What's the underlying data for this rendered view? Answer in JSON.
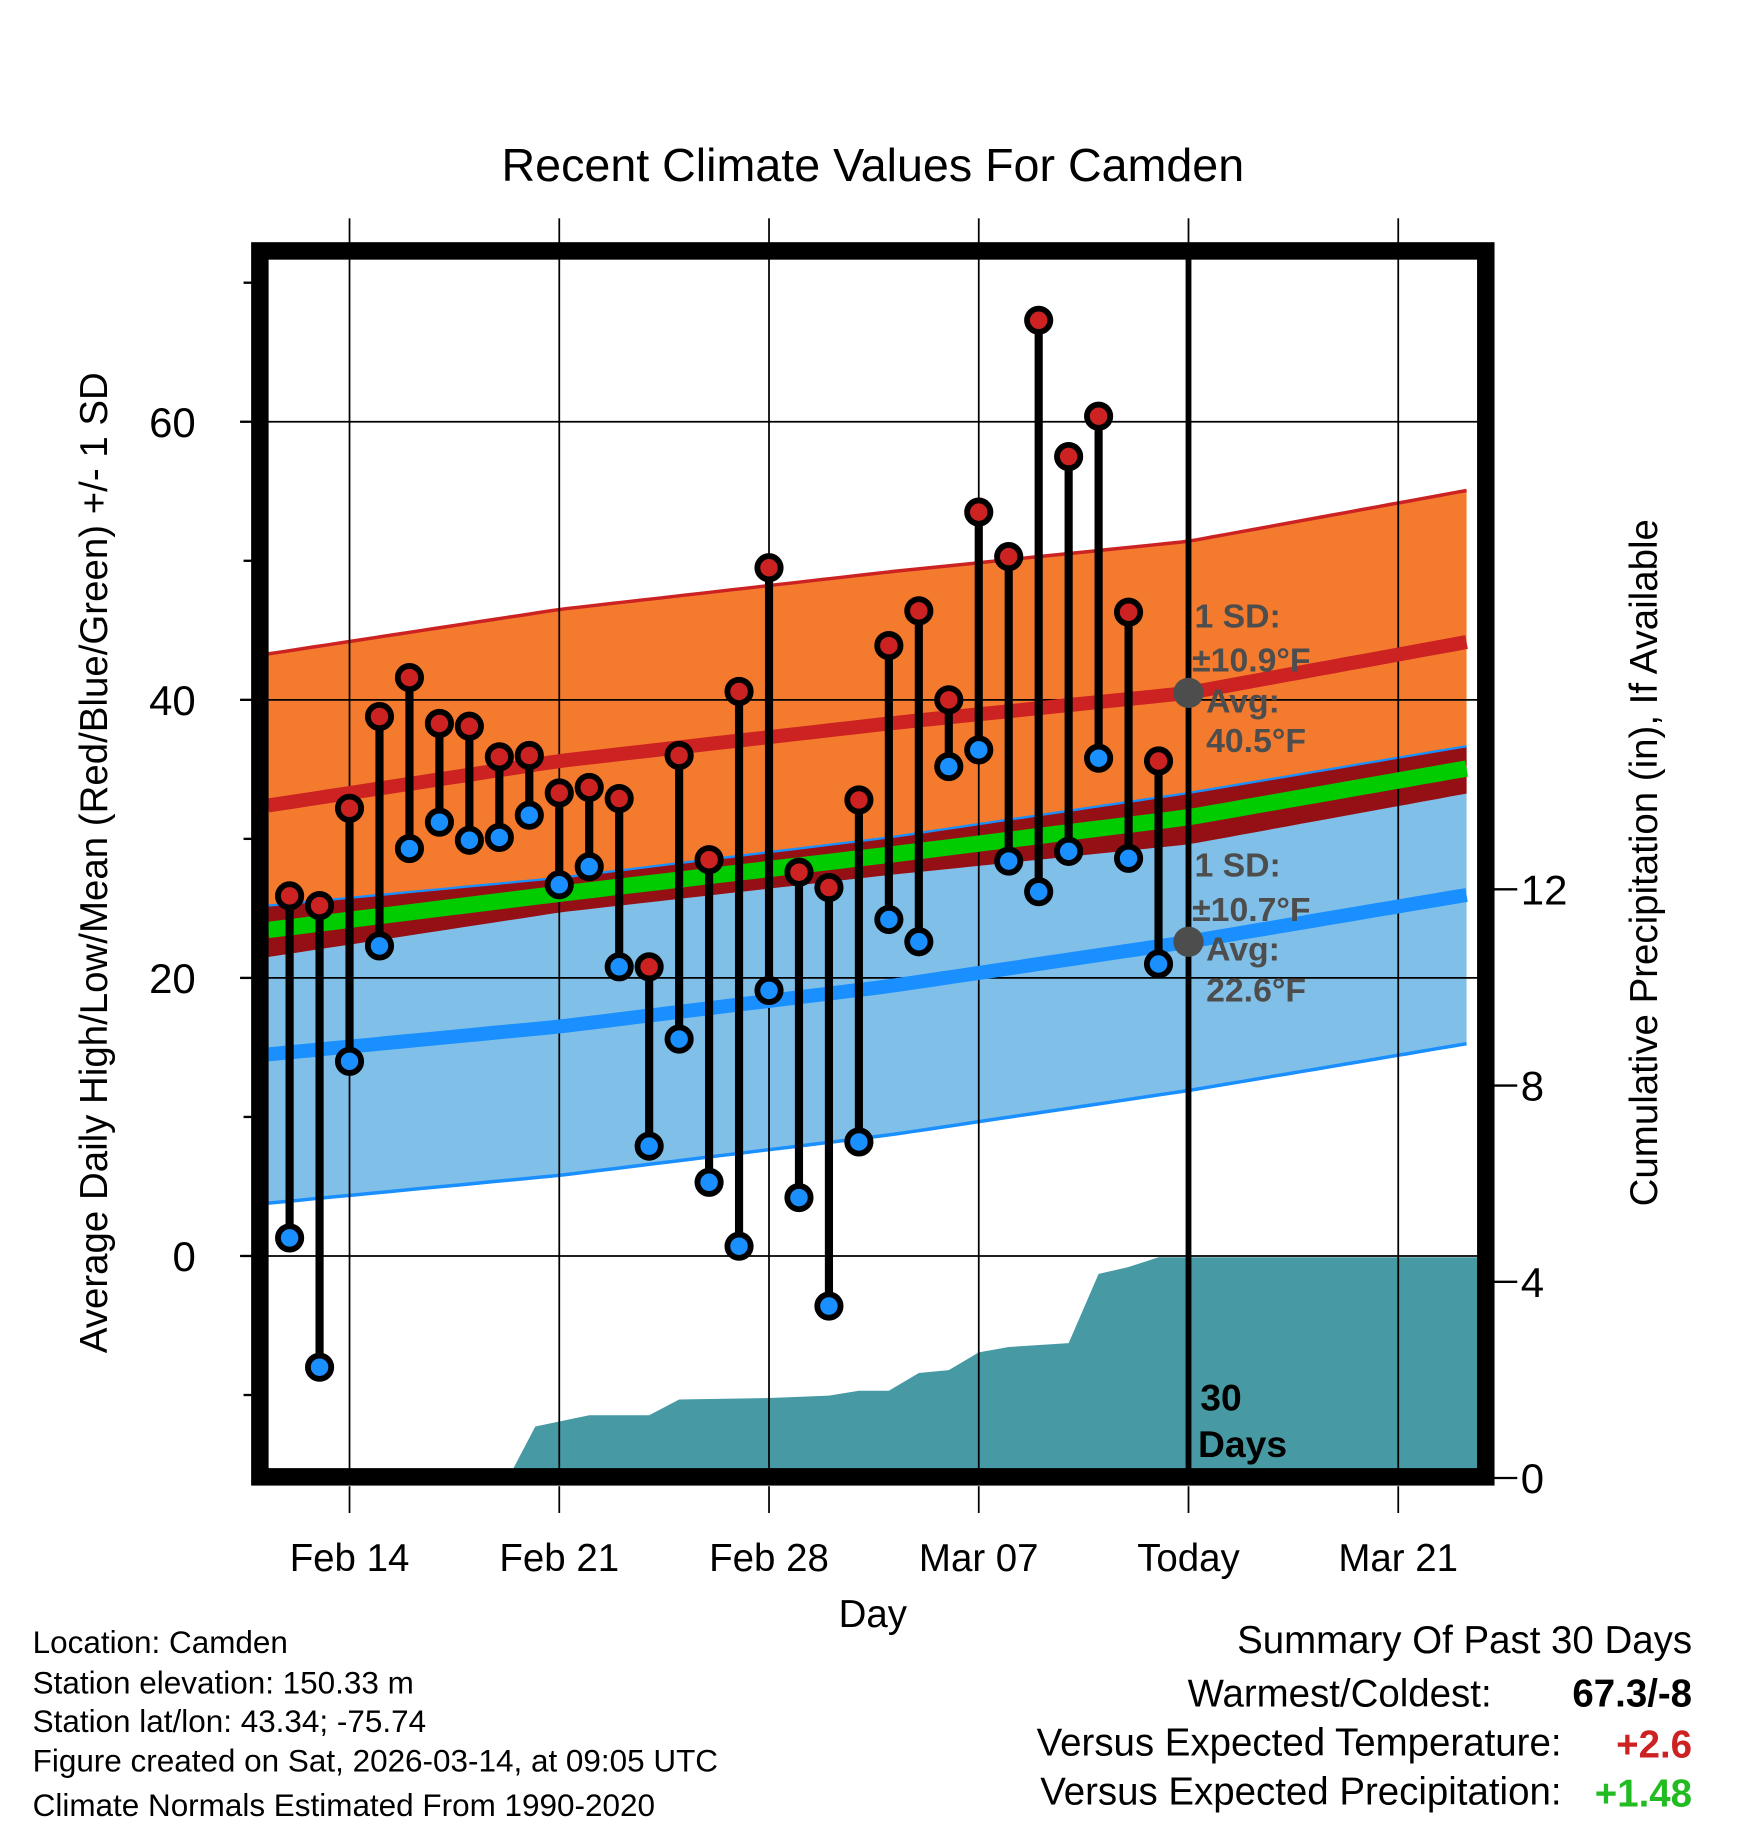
{
  "chart_data": {
    "type": "line",
    "title": "Recent Climate Values For Camden",
    "xlabel": "Day",
    "ylabel": "Average Daily High/Low/Mean (Red/Blue/Green) +/- 1 SD",
    "y2label": "Cumulative Precipitation (in), If Available",
    "ylim": [
      -15.3,
      71.7
    ],
    "y2lim": [
      0,
      20.7
    ],
    "yticks": [
      "0",
      "20",
      "40",
      "60"
    ],
    "yticks_values": [
      0,
      20,
      40,
      60
    ],
    "yminor": [
      -10,
      10,
      30,
      50,
      70
    ],
    "y2ticks": [
      "0",
      "4",
      "8",
      "12"
    ],
    "y2ticks_values": [
      0,
      4,
      8,
      12
    ],
    "xticks": [
      "Feb 14",
      "Feb 21",
      "Feb 28",
      "Mar 07",
      "Today",
      "Mar 21"
    ],
    "xticks_days": [
      2,
      9,
      16,
      23,
      30,
      37
    ],
    "xlim_days": [
      -0.72,
      39.65
    ],
    "grid": true,
    "day_zero": "Feb 12",
    "days": [
      "Feb 12",
      "Feb 13",
      "Feb 14",
      "Feb 15",
      "Feb 16",
      "Feb 17",
      "Feb 18",
      "Feb 19",
      "Feb 20",
      "Feb 21",
      "Feb 22",
      "Feb 23",
      "Feb 24",
      "Feb 25",
      "Feb 26",
      "Feb 27",
      "Feb 28",
      "Mar 01",
      "Mar 02",
      "Mar 03",
      "Mar 04",
      "Mar 05",
      "Mar 06",
      "Mar 07",
      "Mar 08",
      "Mar 09",
      "Mar 10",
      "Mar 11",
      "Mar 12",
      "Mar 13"
    ],
    "highs": [
      25.9,
      25.2,
      32.2,
      38.8,
      41.6,
      38.3,
      38.1,
      35.9,
      36.0,
      33.3,
      33.7,
      32.9,
      20.8,
      36.0,
      28.5,
      40.6,
      49.5,
      27.6,
      26.5,
      32.8,
      43.9,
      46.4,
      40.0,
      53.5,
      50.3,
      67.3,
      57.5,
      60.4,
      46.3,
      35.6
    ],
    "lows": [
      1.3,
      -8.0,
      14.0,
      22.3,
      29.3,
      31.2,
      29.9,
      30.1,
      31.7,
      26.7,
      28.0,
      20.8,
      7.9,
      15.6,
      5.3,
      0.7,
      19.1,
      4.2,
      -3.6,
      8.2,
      24.2,
      22.6,
      35.2,
      36.4,
      28.4,
      26.2,
      29.1,
      35.8,
      28.6,
      21.0
    ],
    "normals": {
      "days": [
        -0.72,
        9,
        20,
        30,
        39.65
      ],
      "high_avg": [
        32.4,
        35.6,
        38.3,
        40.5,
        44.3
      ],
      "low_avg": [
        14.5,
        16.5,
        19.4,
        22.6,
        26.1
      ],
      "high_sd": 10.9,
      "low_sd": 10.7
    },
    "precip": {
      "days": [
        7.3,
        8.2,
        10,
        12,
        13,
        16,
        18,
        19,
        20,
        21,
        22,
        23,
        24,
        26,
        27,
        28,
        29,
        30,
        39.65
      ],
      "cumulative": [
        0,
        1.05,
        1.28,
        1.28,
        1.6,
        1.63,
        1.68,
        1.78,
        1.78,
        2.14,
        2.2,
        2.56,
        2.67,
        2.75,
        4.16,
        4.3,
        4.5,
        4.5,
        4.5
      ]
    },
    "today_day": 30,
    "annotations": {
      "high_sd": "1 SD:",
      "high_sd_val": "±10.9°F",
      "high_avg": "Avg:",
      "high_avg_val": "40.5°F",
      "low_sd": "1 SD:",
      "low_sd_val": "±10.7°F",
      "low_avg": "Avg:",
      "low_avg_val": "22.6°F",
      "days_label_1": "30",
      "days_label_2": "Days"
    },
    "colors": {
      "high": "#cc2222",
      "low": "#1a8fff",
      "mean": "#00cc00",
      "high_band": "#f47b2e",
      "low_band": "#80c0e8",
      "overlap": "#951015",
      "precip": "#479aa3",
      "annotation": "#4d4d4d"
    }
  },
  "info": {
    "location": "Location: Camden",
    "elevation": "Station elevation: 150.33 m",
    "latlon": "Station lat/lon: 43.34; -75.74",
    "created": "Figure created on Sat, 2026-03-14, at 09:05 UTC",
    "normals": "Climate Normals Estimated From 1990-2020"
  },
  "summary": {
    "title": "Summary Of Past 30 Days",
    "warmest_label": "Warmest/Coldest:",
    "warmest_value": "67.3/-8",
    "temp_label": "Versus Expected Temperature:",
    "temp_value": "+2.6",
    "temp_color": "#cc2222",
    "precip_label": "Versus Expected Precipitation:",
    "precip_value": "+1.48",
    "precip_color": "#22bb22"
  }
}
